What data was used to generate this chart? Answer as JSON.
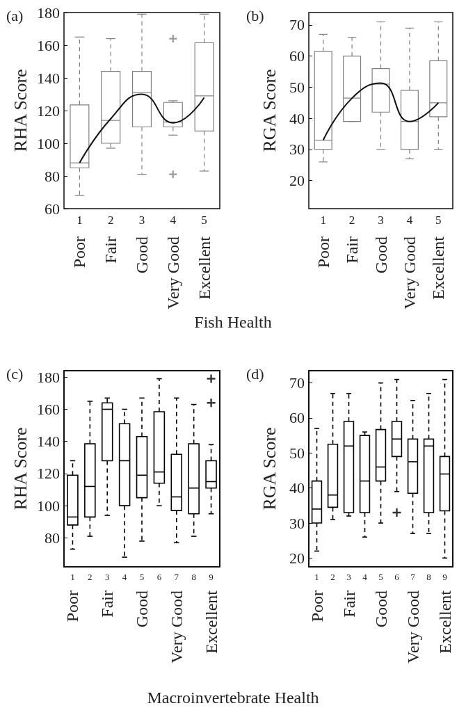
{
  "chart_data": [
    {
      "type": "box",
      "title": "(a)",
      "ylabel": "RHA Score",
      "xlabel": "Fish Health",
      "categories": [
        "1",
        "2",
        "3",
        "4",
        "5"
      ],
      "ylim": [
        60,
        180
      ],
      "yticks": [
        60,
        80,
        100,
        120,
        140,
        160,
        180
      ],
      "grid": false,
      "marker": "cross",
      "annotations": [
        "Poor",
        "Fair",
        "Good",
        "Very Good",
        "Excellent"
      ],
      "series": [
        {
          "color": "#808080",
          "boxes": [
            {
              "low": 68,
              "q1": 85,
              "median": 88,
              "q3": 123.5,
              "high": 165
            },
            {
              "low": 97,
              "q1": 100,
              "median": 114,
              "q3": 144,
              "high": 164
            },
            {
              "low": 81,
              "q1": 110,
              "median": 131,
              "q3": 144,
              "high": 179
            },
            {
              "low": 105,
              "q1": 110,
              "median": 113,
              "q3": 125,
              "high": 126,
              "outliers": [
                164,
                81
              ]
            },
            {
              "low": 83,
              "q1": 107.5,
              "median": 129,
              "q3": 161.5,
              "high": 179
            }
          ]
        },
        {
          "type": "line",
          "marker": "none",
          "color": "#111111",
          "x": [
            "1",
            "2",
            "3",
            "4",
            "5"
          ],
          "values": [
            88,
            115,
            130,
            112.5,
            128
          ]
        }
      ]
    },
    {
      "type": "box",
      "title": "(b)",
      "ylabel": "RGA Score",
      "categories": [
        "1",
        "2",
        "3",
        "4",
        "5"
      ],
      "ylim": [
        11,
        74
      ],
      "yticks": [
        20,
        30,
        40,
        50,
        60,
        70
      ],
      "grid": false,
      "annotations": [
        "Poor",
        "Fair",
        "Good",
        "Very Good",
        "Excellent"
      ],
      "series": [
        {
          "color": "#808080",
          "boxes": [
            {
              "low": 26,
              "q1": 30,
              "median": 33,
              "q3": 61.5,
              "high": 67
            },
            {
              "low": 39,
              "q1": 39,
              "median": 46.5,
              "q3": 60,
              "high": 66
            },
            {
              "low": 30,
              "q1": 42,
              "median": 51,
              "q3": 56,
              "high": 71
            },
            {
              "low": 27,
              "q1": 30,
              "median": 39,
              "q3": 49,
              "high": 69
            },
            {
              "low": 30,
              "q1": 40.5,
              "median": 45,
              "q3": 58.5,
              "high": 71
            }
          ]
        },
        {
          "type": "line",
          "color": "#111111",
          "x": [
            "1",
            "2",
            "3",
            "4",
            "5"
          ],
          "values": [
            33,
            46.5,
            51.3,
            39,
            45
          ]
        }
      ]
    },
    {
      "type": "box",
      "title": "(c)",
      "ylabel": "RHA Score",
      "xlabel": "Macroinvertebrate Health",
      "categories": [
        "1",
        "2",
        "3",
        "4",
        "5",
        "6",
        "7",
        "8",
        "9"
      ],
      "ylim": [
        62,
        184
      ],
      "yticks": [
        80,
        100,
        120,
        140,
        160,
        180
      ],
      "grid": false,
      "marker": "cross",
      "annotations": [
        "Poor",
        "Fair",
        "Good",
        "Very Good",
        "Excellent"
      ],
      "series": [
        {
          "color": "#000000",
          "boxes": [
            {
              "low": 73,
              "q1": 88,
              "median": 93,
              "q3": 119,
              "high": 128
            },
            {
              "low": 81,
              "q1": 93,
              "median": 112,
              "q3": 138.5,
              "high": 165
            },
            {
              "low": 94,
              "q1": 128,
              "median": 160,
              "q3": 164,
              "high": 167
            },
            {
              "low": 68,
              "q1": 100,
              "median": 128,
              "q3": 151,
              "high": 160
            },
            {
              "low": 78,
              "q1": 105,
              "median": 119,
              "q3": 143,
              "high": 167
            },
            {
              "low": 100,
              "q1": 114,
              "median": 121,
              "q3": 158.5,
              "high": 179
            },
            {
              "low": 77,
              "q1": 97,
              "median": 105.5,
              "q3": 132,
              "high": 167
            },
            {
              "low": 81,
              "q1": 95,
              "median": 111,
              "q3": 138.5,
              "high": 163
            },
            {
              "low": 95,
              "q1": 111,
              "median": 115,
              "q3": 128,
              "high": 138,
              "outliers": [
                179,
                164
              ]
            }
          ]
        }
      ]
    },
    {
      "type": "box",
      "title": "(d)",
      "ylabel": "RGA Score",
      "categories": [
        "1",
        "2",
        "3",
        "4",
        "5",
        "6",
        "7",
        "8",
        "9"
      ],
      "ylim": [
        17.5,
        73.5
      ],
      "yticks": [
        20,
        30,
        40,
        50,
        60,
        70
      ],
      "grid": false,
      "marker": "cross",
      "annotations": [
        "Poor",
        "Fair",
        "Good",
        "Very Good",
        "Excellent"
      ],
      "series": [
        {
          "color": "#000000",
          "boxes": [
            {
              "low": 22,
              "q1": 30,
              "median": 34,
              "q3": 42,
              "high": 57
            },
            {
              "low": 31,
              "q1": 34.5,
              "median": 38,
              "q3": 52.5,
              "high": 67
            },
            {
              "low": 32,
              "q1": 33,
              "median": 52,
              "q3": 59,
              "high": 67
            },
            {
              "low": 26,
              "q1": 33,
              "median": 42,
              "q3": 55,
              "high": 56
            },
            {
              "low": 30,
              "q1": 42,
              "median": 46,
              "q3": 56.7,
              "high": 70
            },
            {
              "low": 39,
              "q1": 49,
              "median": 54,
              "q3": 59,
              "high": 71,
              "outliers": [
                33
              ]
            },
            {
              "low": 27,
              "q1": 38.5,
              "median": 47.5,
              "q3": 54,
              "high": 65
            },
            {
              "low": 27,
              "q1": 33,
              "median": 52,
              "q3": 54,
              "high": 67
            },
            {
              "low": 20,
              "q1": 33.5,
              "median": 44,
              "q3": 49,
              "high": 71
            }
          ]
        }
      ]
    }
  ]
}
